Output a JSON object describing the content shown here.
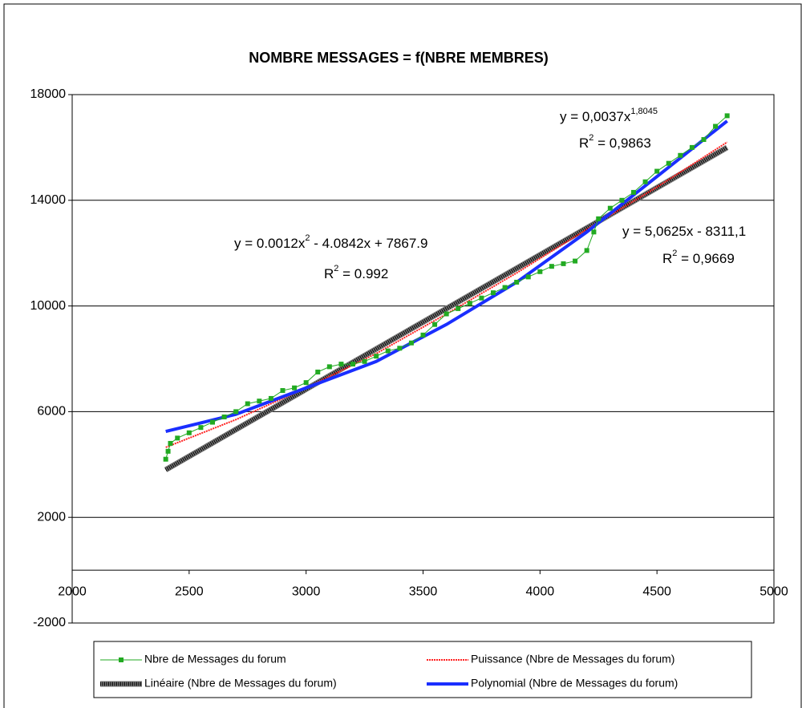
{
  "chart_data": {
    "type": "scatter",
    "title": "NOMBRE MESSAGES = f(NBRE MEMBRES)",
    "xlim": [
      2000,
      5000
    ],
    "xticks": [
      2000,
      2500,
      3000,
      3500,
      4000,
      4500,
      5000
    ],
    "ylim": [
      -2000,
      18000
    ],
    "yticks": [
      -2000,
      2000,
      6000,
      10000,
      14000,
      18000
    ],
    "grid": true,
    "series": [
      {
        "name": "Nbre de Messages du forum",
        "color": "#22aa22",
        "style": "markers",
        "x": [
          2400,
          2410,
          2420,
          2450,
          2500,
          2550,
          2600,
          2650,
          2700,
          2750,
          2800,
          2850,
          2900,
          2950,
          3000,
          3050,
          3100,
          3150,
          3200,
          3250,
          3300,
          3350,
          3400,
          3450,
          3500,
          3550,
          3600,
          3650,
          3700,
          3750,
          3800,
          3850,
          3900,
          3950,
          4000,
          4050,
          4100,
          4150,
          4200,
          4230,
          4250,
          4300,
          4350,
          4400,
          4450,
          4500,
          4550,
          4600,
          4650,
          4700,
          4750,
          4800
        ],
        "values": [
          4200,
          4500,
          4800,
          5000,
          5200,
          5400,
          5600,
          5800,
          6000,
          6300,
          6400,
          6500,
          6800,
          6900,
          7100,
          7500,
          7700,
          7800,
          7800,
          7900,
          8100,
          8300,
          8400,
          8600,
          8900,
          9300,
          9700,
          9900,
          10100,
          10300,
          10500,
          10700,
          10900,
          11100,
          11300,
          11500,
          11600,
          11700,
          12100,
          12800,
          13300,
          13700,
          14000,
          14300,
          14700,
          15100,
          15400,
          15700,
          16000,
          16300,
          16800,
          17200
        ]
      },
      {
        "name": "Puissance (Nbre de Messages du forum)",
        "color": "#ff2020",
        "style": "dotted",
        "x": [
          2400,
          2700,
          3000,
          3300,
          3600,
          3900,
          4200,
          4500,
          4800
        ],
        "values": [
          4650,
          5700,
          6900,
          8200,
          9700,
          11250,
          12900,
          14500,
          16200
        ]
      },
      {
        "name": "Linéaire (Nbre de Messages du forum)",
        "color": "#777777",
        "style": "hatched",
        "x": [
          2400,
          4800
        ],
        "values": [
          3800,
          16000
        ]
      },
      {
        "name": "Polynomial (Nbre de Messages du forum)",
        "color": "#1a2eff",
        "style": "thick",
        "x": [
          2400,
          2700,
          3000,
          3300,
          3600,
          3900,
          4200,
          4500,
          4800
        ],
        "values": [
          5250,
          5900,
          6900,
          7900,
          9300,
          10900,
          12800,
          14900,
          17000
        ]
      }
    ],
    "annotations": [
      {
        "parts": [
          {
            "text": "y = 0,0037x"
          },
          {
            "sup": "1,8045"
          }
        ]
      },
      {
        "parts": [
          {
            "text": "R"
          },
          {
            "sup": "2"
          },
          {
            "text": " = 0,9863"
          }
        ]
      },
      {
        "parts": [
          {
            "text": "y = 5,0625x - 8311,1"
          }
        ]
      },
      {
        "parts": [
          {
            "text": "R"
          },
          {
            "sup": "2"
          },
          {
            "text": " = 0,9669"
          }
        ]
      },
      {
        "parts": [
          {
            "text": "y = 0.0012x"
          },
          {
            "sup": "2"
          },
          {
            "text": " - 4.0842x + 7867.9"
          }
        ]
      },
      {
        "parts": [
          {
            "text": "R"
          },
          {
            "sup": "2"
          },
          {
            "text": " = 0.992"
          }
        ]
      }
    ]
  }
}
